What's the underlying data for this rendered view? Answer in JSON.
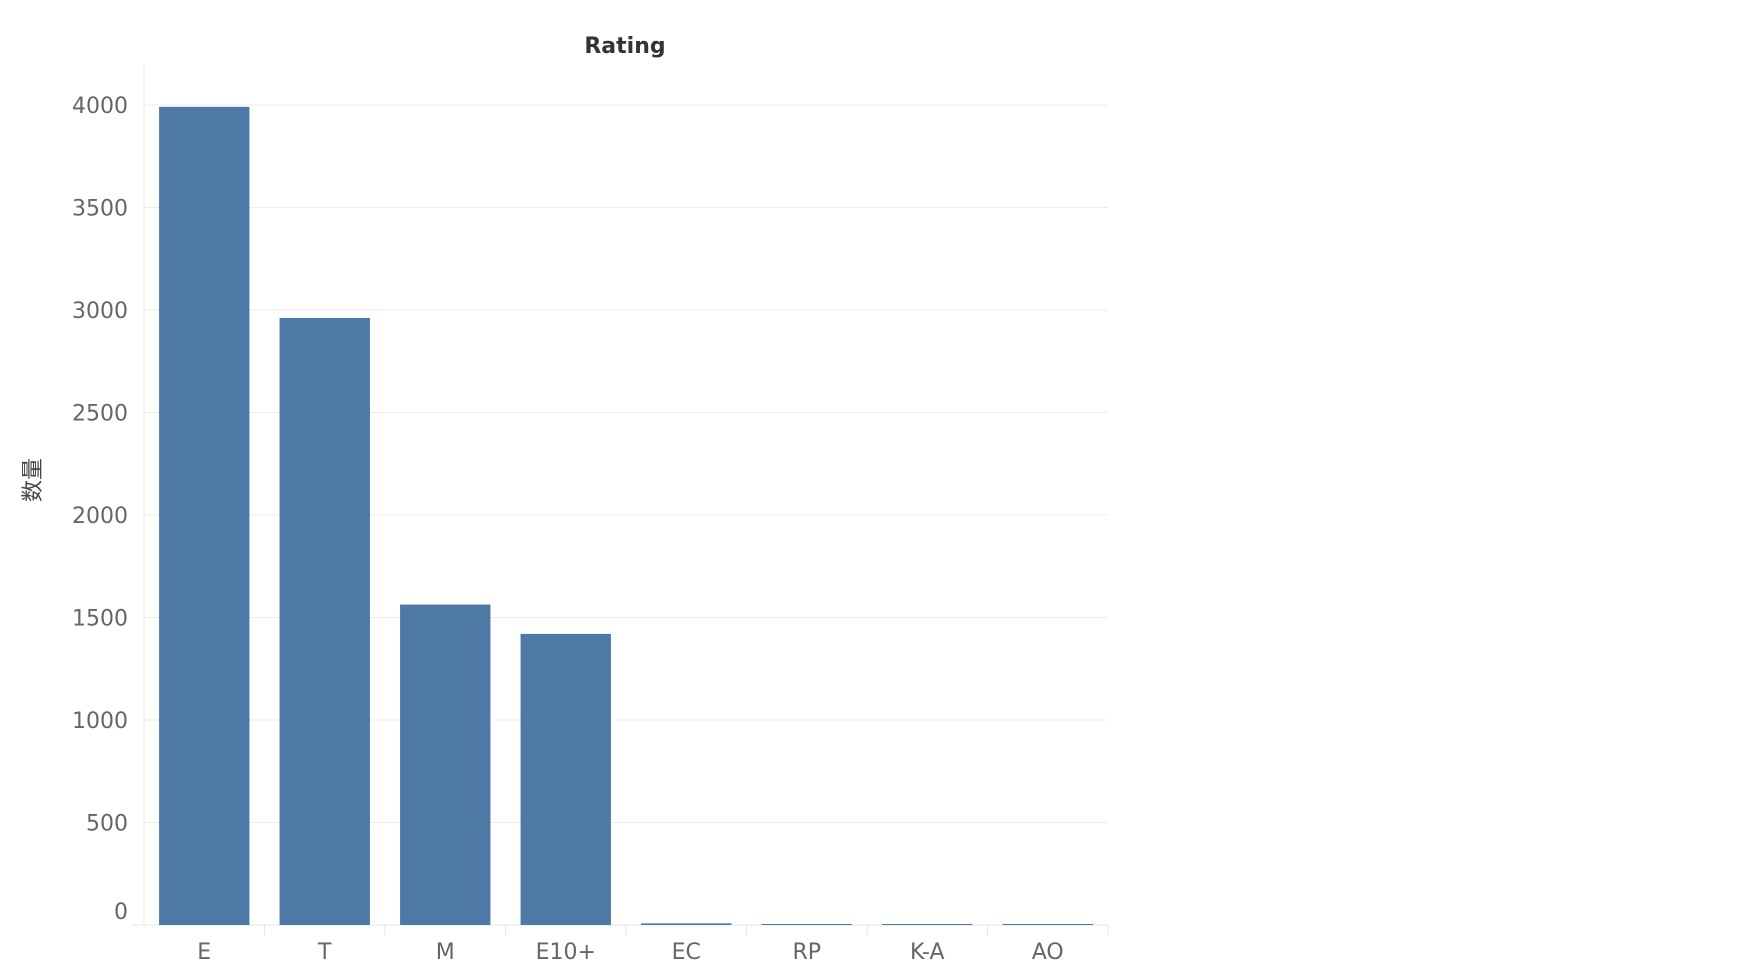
{
  "chart_data": {
    "type": "bar",
    "title": "Rating",
    "xlabel": "",
    "ylabel": "数量",
    "categories": [
      "E",
      "T",
      "M",
      "E10+",
      "EC",
      "RP",
      "K-A",
      "AO"
    ],
    "values": [
      3991,
      2961,
      1563,
      1420,
      8,
      3,
      3,
      1
    ],
    "ylim": [
      0,
      4000
    ],
    "yticks": [
      0,
      500,
      1000,
      1500,
      2000,
      2500,
      3000,
      3500,
      4000
    ],
    "grid": true,
    "legend": "none",
    "colors": {
      "bar": "#4e79a7"
    }
  }
}
